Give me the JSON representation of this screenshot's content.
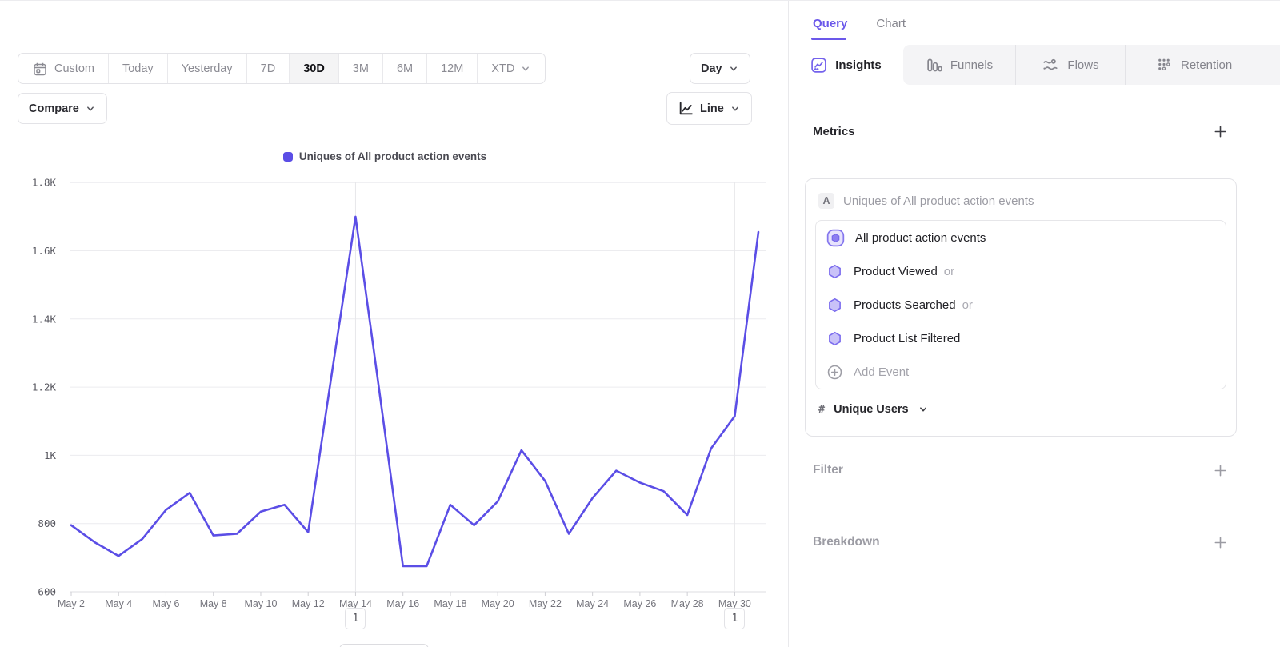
{
  "toolbar": {
    "ranges": [
      {
        "label": "Custom",
        "icon": "calendar-icon",
        "selected": false,
        "chevron": false
      },
      {
        "label": "Today",
        "selected": false,
        "chevron": false
      },
      {
        "label": "Yesterday",
        "selected": false,
        "chevron": false
      },
      {
        "label": "7D",
        "selected": false,
        "chevron": false
      },
      {
        "label": "30D",
        "selected": true,
        "chevron": false
      },
      {
        "label": "3M",
        "selected": false,
        "chevron": false
      },
      {
        "label": "6M",
        "selected": false,
        "chevron": false
      },
      {
        "label": "12M",
        "selected": false,
        "chevron": false
      },
      {
        "label": "XTD",
        "selected": false,
        "chevron": true
      }
    ],
    "granularity_label": "Day",
    "compare_label": "Compare",
    "chart_type_label": "Line"
  },
  "right_panel": {
    "top_tabs": [
      {
        "label": "Query",
        "active": true
      },
      {
        "label": "Chart",
        "active": false
      }
    ],
    "report_tabs": [
      {
        "label": "Insights",
        "icon": "insights-icon",
        "active": true
      },
      {
        "label": "Funnels",
        "icon": "funnels-icon",
        "active": false
      },
      {
        "label": "Flows",
        "icon": "flows-icon",
        "active": false
      },
      {
        "label": "Retention",
        "icon": "retention-icon",
        "active": false
      }
    ],
    "metrics": {
      "heading": "Metrics",
      "series_badge": "A",
      "series_label": "Uniques of All product action events",
      "events": [
        {
          "name": "All product action events",
          "suffix": "",
          "icon": "event-group-icon"
        },
        {
          "name": "Product Viewed",
          "suffix": "or",
          "icon": "event-hexagon-icon"
        },
        {
          "name": "Products Searched",
          "suffix": "or",
          "icon": "event-hexagon-icon"
        },
        {
          "name": "Product List Filtered",
          "suffix": "",
          "icon": "event-hexagon-icon"
        }
      ],
      "add_event_label": "Add Event",
      "aggregation_symbol": "#",
      "aggregation_label": "Unique Users"
    },
    "sections": [
      {
        "label": "Filter"
      },
      {
        "label": "Breakdown"
      }
    ]
  },
  "chart_data": {
    "type": "line",
    "title": "",
    "legend": "Uniques of All product action events",
    "legend_position": "top-center",
    "x": [
      "May 2",
      "May 3",
      "May 4",
      "May 5",
      "May 6",
      "May 7",
      "May 8",
      "May 9",
      "May 10",
      "May 11",
      "May 12",
      "May 13",
      "May 14",
      "May 15",
      "May 16",
      "May 17",
      "May 18",
      "May 19",
      "May 20",
      "May 21",
      "May 22",
      "May 23",
      "May 24",
      "May 25",
      "May 26",
      "May 27",
      "May 28",
      "May 29",
      "May 30",
      "May 31"
    ],
    "series": [
      {
        "name": "Uniques of All product action events",
        "color": "#5b4ee6",
        "values": [
          795,
          745,
          705,
          755,
          840,
          890,
          765,
          770,
          835,
          855,
          775,
          1240,
          1700,
          1190,
          675,
          675,
          855,
          795,
          865,
          1015,
          925,
          770,
          875,
          955,
          920,
          895,
          825,
          1020,
          1115,
          1655
        ]
      }
    ],
    "ylim": [
      600,
      1800
    ],
    "ytick_labels": [
      "600",
      "800",
      "1K",
      "1.2K",
      "1.4K",
      "1.6K",
      "1.8K"
    ],
    "xtick_labels": [
      "May 2",
      "May 4",
      "May 6",
      "May 8",
      "May 10",
      "May 12",
      "May 14",
      "May 16",
      "May 18",
      "May 20",
      "May 22",
      "May 24",
      "May 26",
      "May 28",
      "May 30"
    ],
    "grid": "horizontal",
    "vertical_gridlines_at": [
      "May 14",
      "May 30"
    ],
    "annotations": [
      {
        "label": "1",
        "x": "May 14"
      },
      {
        "label": "1",
        "x": "May 30"
      }
    ]
  },
  "colors": {
    "accent_purple": "#6b58ea",
    "line_purple": "#5b4ee6",
    "hexagon_fill": "#c9c2f8",
    "hexagon_stroke": "#7b6cee",
    "inactive_tab_bg": "#f4f4f6",
    "selected_range_bg": "#f4f4f5"
  }
}
